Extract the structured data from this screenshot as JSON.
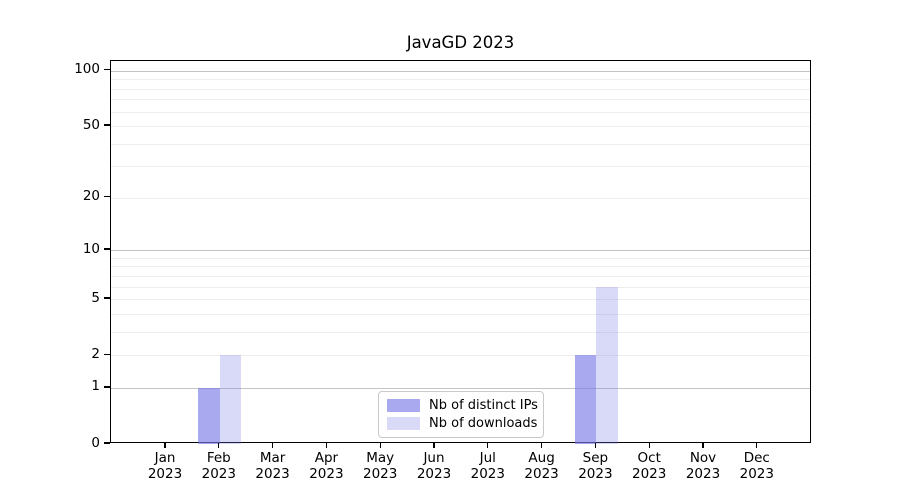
{
  "chart_data": {
    "type": "bar",
    "title": "JavaGD 2023",
    "scale": "log1p",
    "categories": [
      "Jan",
      "Feb",
      "Mar",
      "Apr",
      "May",
      "Jun",
      "Jul",
      "Aug",
      "Sep",
      "Oct",
      "Nov",
      "Dec"
    ],
    "year_label": "2023",
    "series": [
      {
        "name": "Nb of distinct IPs",
        "color": "rgba(120,120,230,0.64)",
        "values": [
          0,
          1,
          0,
          0,
          0,
          0,
          0,
          0,
          2,
          0,
          0,
          0
        ]
      },
      {
        "name": "Nb of downloads",
        "color": "rgba(120,120,230,0.28)",
        "values": [
          0,
          2,
          0,
          0,
          0,
          0,
          0,
          0,
          6,
          0,
          0,
          0
        ]
      }
    ],
    "xlabel": "",
    "ylabel": "",
    "ylim": [
      0,
      113
    ],
    "yticks": [
      0,
      1,
      2,
      5,
      10,
      20,
      50,
      100
    ],
    "major_gridlines": [
      1,
      10,
      100
    ],
    "minor_gridlines": [
      2,
      3,
      4,
      5,
      6,
      7,
      8,
      9,
      20,
      30,
      40,
      50,
      60,
      70,
      80,
      90
    ],
    "grid": true,
    "legend_position": "bottom-center"
  },
  "colors": {
    "axis": "#000000",
    "major_grid": "#c4c4c4",
    "minor_grid": "#eeeeee",
    "legend_border": "#c9c9c9",
    "background": "#ffffff"
  }
}
